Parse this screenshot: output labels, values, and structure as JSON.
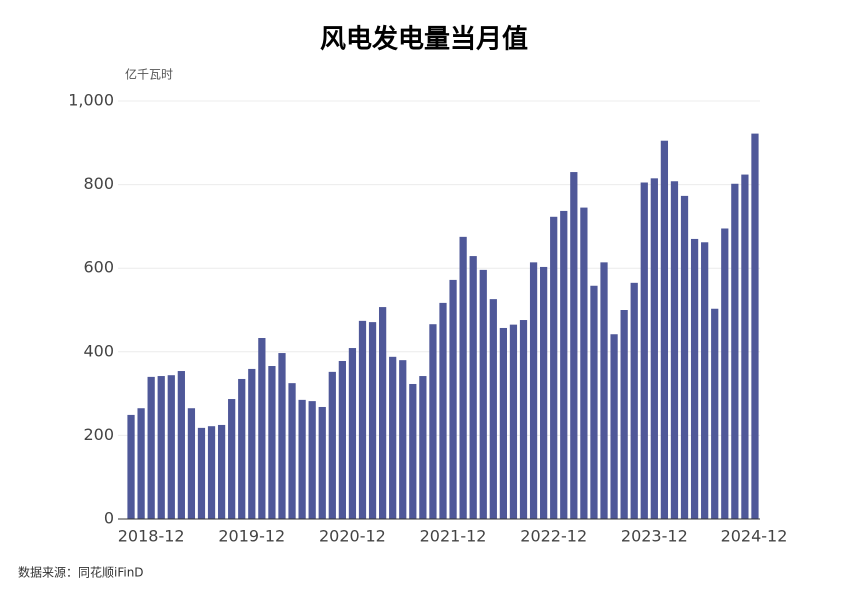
{
  "chart_data": {
    "type": "bar",
    "title": "风电发电量当月值",
    "y_label": "亿千瓦时",
    "source": "数据来源：同花顺iFinD",
    "categories": [
      null,
      null,
      "2018-12",
      null,
      null,
      null,
      null,
      null,
      null,
      null,
      null,
      null,
      "2019-12",
      null,
      null,
      null,
      null,
      null,
      null,
      null,
      null,
      null,
      "2020-12",
      null,
      null,
      null,
      null,
      null,
      null,
      null,
      null,
      null,
      "2021-12",
      null,
      null,
      null,
      null,
      null,
      null,
      null,
      null,
      null,
      "2022-12",
      null,
      null,
      null,
      null,
      null,
      null,
      null,
      null,
      null,
      "2023-12",
      null,
      null,
      null,
      null,
      null,
      null,
      null,
      null,
      null,
      "2024-12"
    ],
    "values": [
      249,
      265,
      340,
      342,
      344,
      354,
      265,
      218,
      222,
      225,
      287,
      335,
      359,
      433,
      366,
      397,
      325,
      285,
      282,
      268,
      352,
      378,
      409,
      474,
      471,
      507,
      388,
      380,
      323,
      342,
      466,
      517,
      572,
      675,
      629,
      596,
      526,
      457,
      465,
      476,
      614,
      603,
      723,
      737,
      830,
      745,
      558,
      614,
      442,
      500,
      565,
      805,
      815,
      905,
      808,
      773,
      670,
      662,
      503,
      695,
      802,
      824,
      922
    ],
    "color": "#4f5899",
    "ylim": [
      0,
      1000
    ],
    "yticks": [
      0,
      200,
      400,
      600,
      800,
      {
        "value": 1000,
        "label": "1,000"
      }
    ],
    "grid": true
  }
}
